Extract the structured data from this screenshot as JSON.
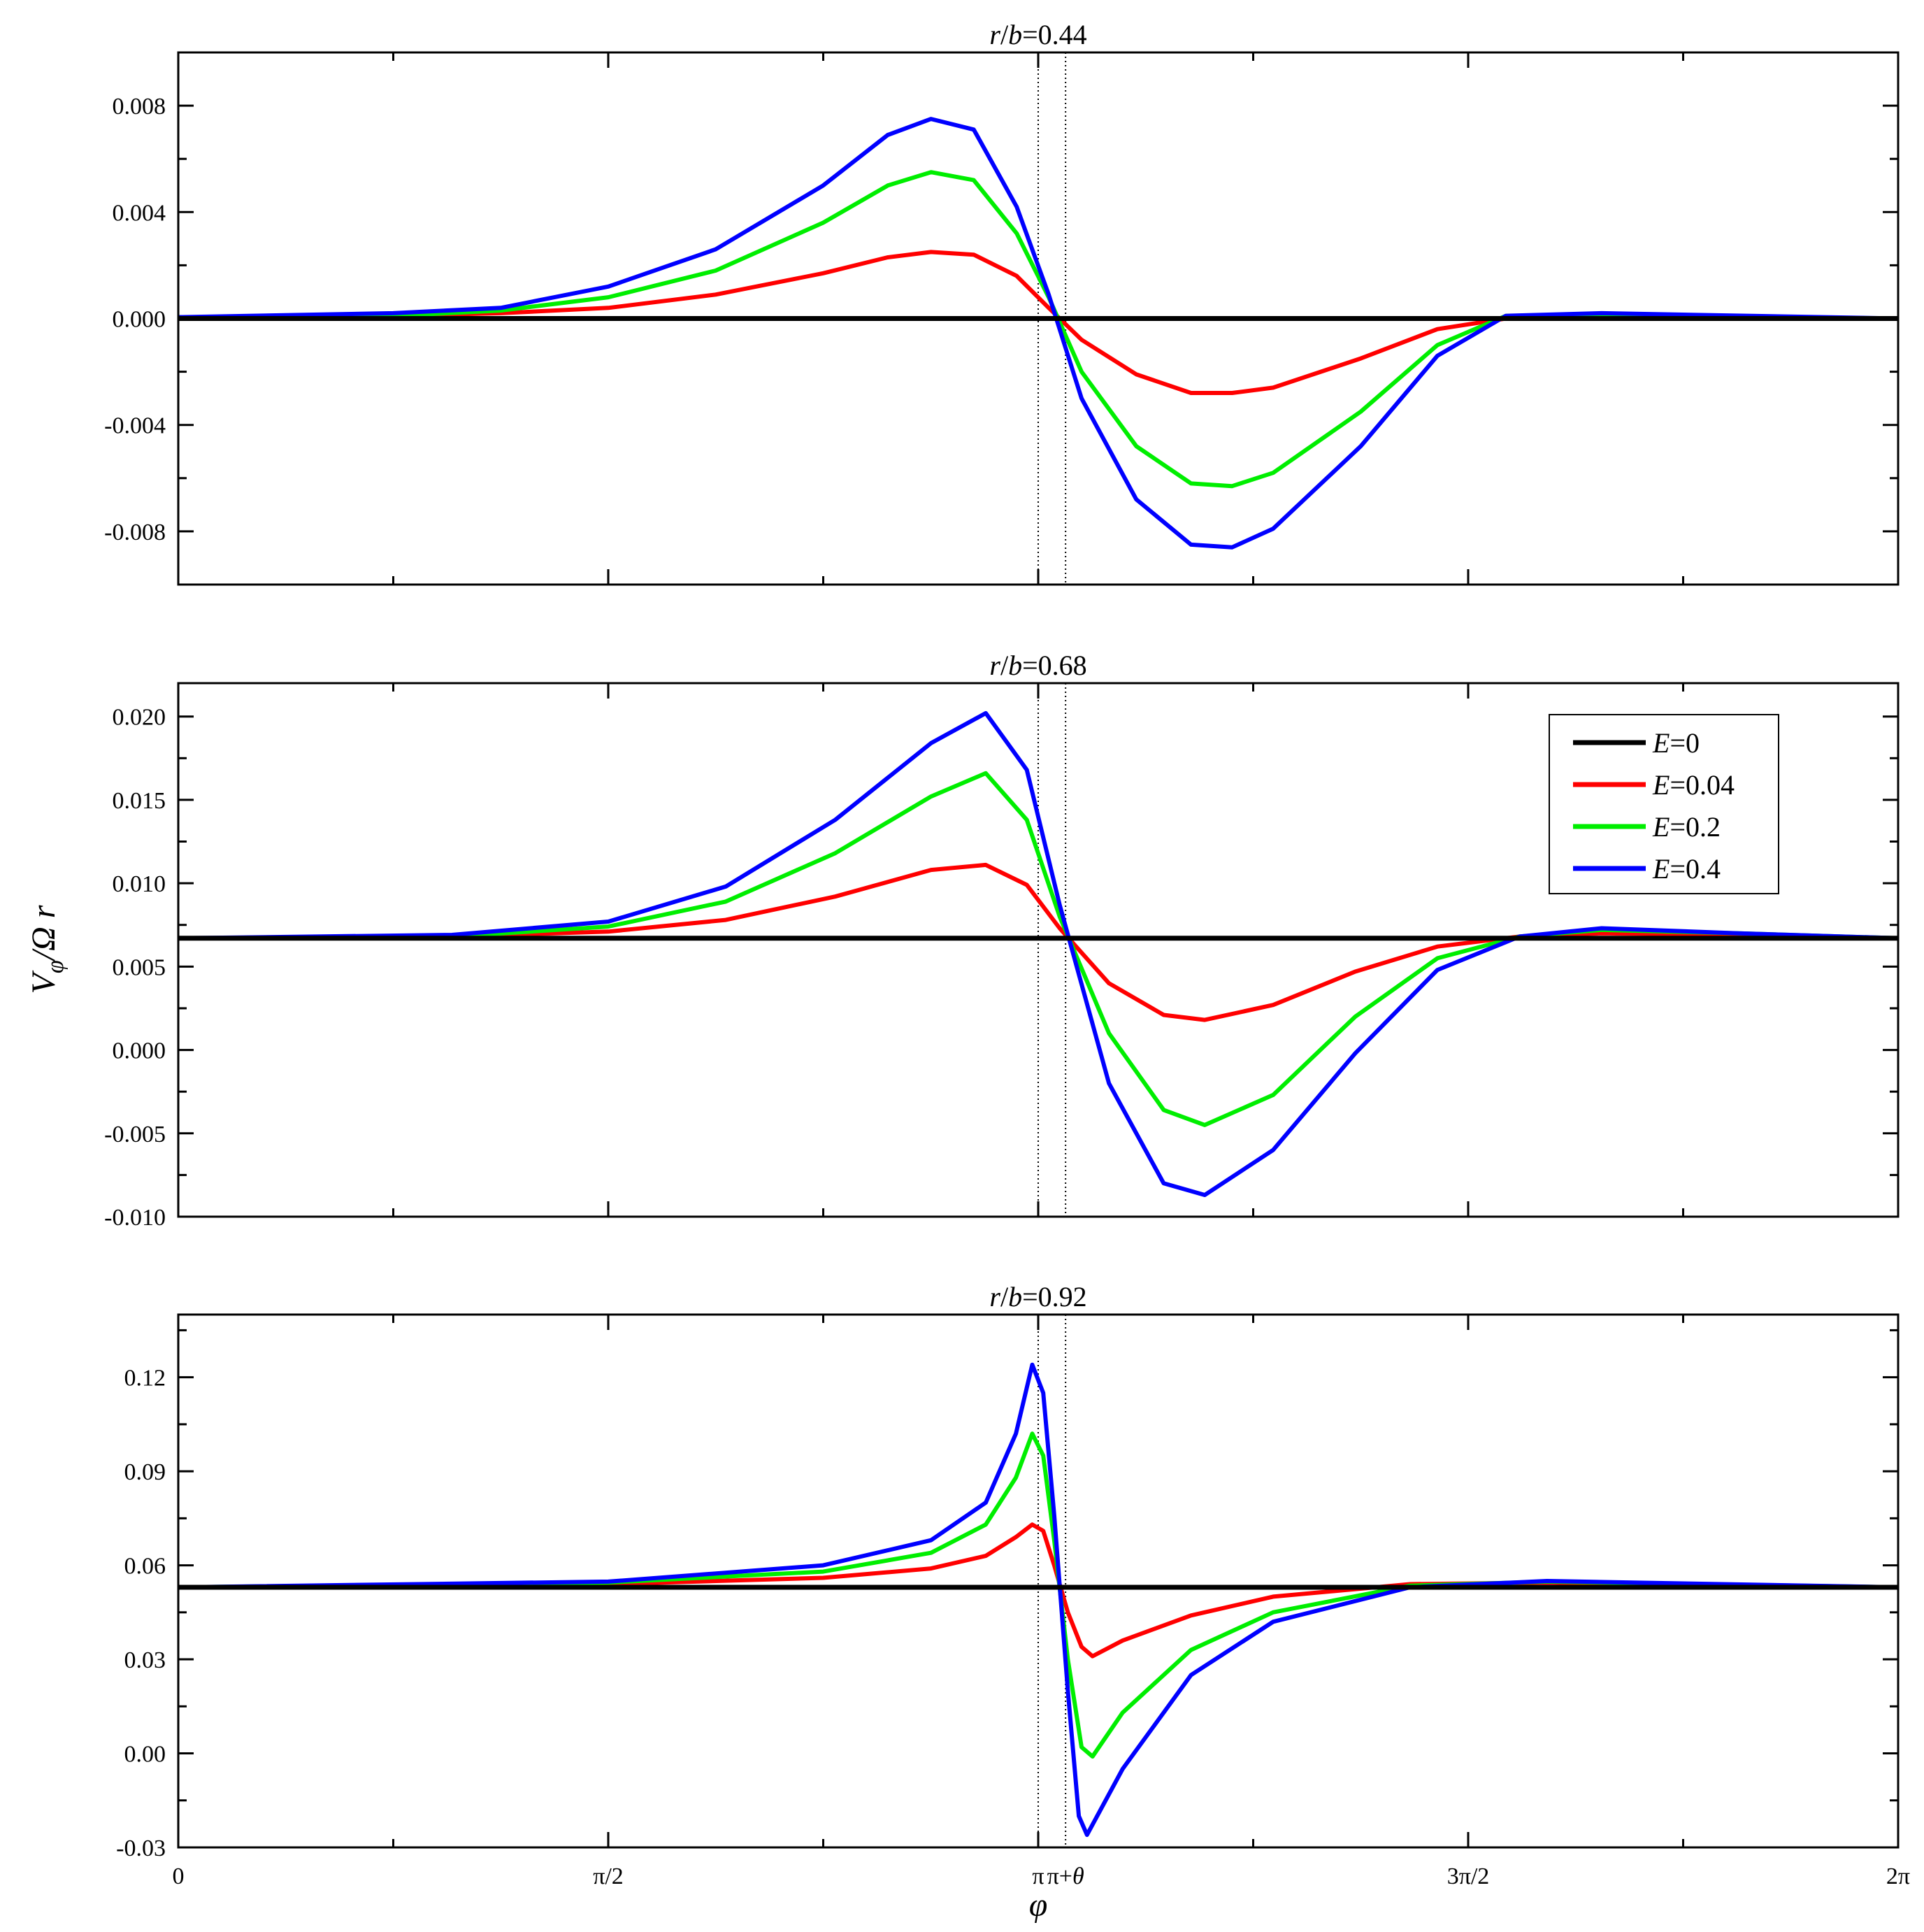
{
  "chart_data": {
    "type": "line",
    "xlabel": "φ",
    "ylabel": "V_φ/Ω r",
    "ylabel_parts": {
      "main": "V",
      "sub": "φ",
      "rest": "/Ω r"
    },
    "xlim": [
      0,
      6.2832
    ],
    "x_ticks": [
      {
        "value": 0,
        "label": "0"
      },
      {
        "value": 1.5708,
        "label": "π/2"
      },
      {
        "value": 3.1416,
        "label": "π"
      },
      {
        "value": 3.2416,
        "label": "π+θ"
      },
      {
        "value": 4.7124,
        "label": "3π/2"
      },
      {
        "value": 6.2832,
        "label": "2π"
      }
    ],
    "vlines": [
      3.1416,
      3.2416
    ],
    "legend": [
      {
        "name": "E=0",
        "var": "E",
        "value": "=0",
        "color": "#000000"
      },
      {
        "name": "E=0.04",
        "var": "E",
        "value": "=0.04",
        "color": "#ff0000"
      },
      {
        "name": "E=0.2",
        "var": "E",
        "value": "=0.2",
        "color": "#00ee00"
      },
      {
        "name": "E=0.4",
        "var": "E",
        "value": "=0.4",
        "color": "#0000ff"
      }
    ],
    "legend_position": "top-right of middle panel",
    "panels": [
      {
        "title": "r/b=0.44",
        "title_parts": {
          "r": "r",
          "b": "b",
          "val": "=0.44"
        },
        "ylim": [
          -0.01,
          0.01
        ],
        "y_ticks": [
          {
            "value": 0.008,
            "label": "0.008"
          },
          {
            "value": 0.004,
            "label": "0.004"
          },
          {
            "value": 0.0,
            "label": "0.000"
          },
          {
            "value": -0.004,
            "label": "-0.004"
          },
          {
            "value": -0.008,
            "label": "-0.008"
          }
        ],
        "series": [
          {
            "name": "E=0",
            "color": "#000000",
            "points": [
              [
                0,
                0
              ],
              [
                6.2832,
                0
              ]
            ]
          },
          {
            "name": "E=0.04",
            "color": "#ff0000",
            "points": [
              [
                0,
                5e-05
              ],
              [
                0.785,
                0.0001
              ],
              [
                1.178,
                0.0002
              ],
              [
                1.571,
                0.0004
              ],
              [
                1.963,
                0.0009
              ],
              [
                2.356,
                0.0017
              ],
              [
                2.592,
                0.0023
              ],
              [
                2.75,
                0.0025
              ],
              [
                2.906,
                0.0024
              ],
              [
                3.063,
                0.0016
              ],
              [
                3.18,
                0.0004
              ],
              [
                3.3,
                -0.0008
              ],
              [
                3.5,
                -0.0021
              ],
              [
                3.7,
                -0.0028
              ],
              [
                3.85,
                -0.0028
              ],
              [
                4.0,
                -0.0026
              ],
              [
                4.32,
                -0.0015
              ],
              [
                4.6,
                -0.0004
              ],
              [
                4.85,
                0
              ],
              [
                5.2,
                5e-05
              ],
              [
                6.2832,
                0
              ]
            ]
          },
          {
            "name": "E=0.2",
            "color": "#00ee00",
            "points": [
              [
                0,
                5e-05
              ],
              [
                0.785,
                0.0001
              ],
              [
                1.178,
                0.0003
              ],
              [
                1.571,
                0.0008
              ],
              [
                1.963,
                0.0018
              ],
              [
                2.356,
                0.0036
              ],
              [
                2.592,
                0.005
              ],
              [
                2.75,
                0.0055
              ],
              [
                2.906,
                0.0052
              ],
              [
                3.063,
                0.0032
              ],
              [
                3.18,
                0.0008
              ],
              [
                3.3,
                -0.002
              ],
              [
                3.5,
                -0.0048
              ],
              [
                3.7,
                -0.0062
              ],
              [
                3.85,
                -0.0063
              ],
              [
                4.0,
                -0.0058
              ],
              [
                4.32,
                -0.0035
              ],
              [
                4.6,
                -0.001
              ],
              [
                4.85,
                0.0001
              ],
              [
                5.2,
                0.00015
              ],
              [
                6.2832,
                0
              ]
            ]
          },
          {
            "name": "E=0.4",
            "color": "#0000ff",
            "points": [
              [
                0,
                5e-05
              ],
              [
                0.785,
                0.0002
              ],
              [
                1.178,
                0.0004
              ],
              [
                1.571,
                0.0012
              ],
              [
                1.963,
                0.0026
              ],
              [
                2.356,
                0.005
              ],
              [
                2.592,
                0.0069
              ],
              [
                2.75,
                0.0075
              ],
              [
                2.906,
                0.0071
              ],
              [
                3.063,
                0.0042
              ],
              [
                3.18,
                0.0009
              ],
              [
                3.3,
                -0.003
              ],
              [
                3.5,
                -0.0068
              ],
              [
                3.7,
                -0.0085
              ],
              [
                3.85,
                -0.0086
              ],
              [
                4.0,
                -0.0079
              ],
              [
                4.32,
                -0.0048
              ],
              [
                4.6,
                -0.0014
              ],
              [
                4.85,
                0.0001
              ],
              [
                5.2,
                0.0002
              ],
              [
                6.2832,
                0
              ]
            ]
          }
        ]
      },
      {
        "title": "r/b=0.68",
        "title_parts": {
          "r": "r",
          "b": "b",
          "val": "=0.68"
        },
        "ylim": [
          -0.01,
          0.022
        ],
        "y_ticks": [
          {
            "value": 0.02,
            "label": "0.020"
          },
          {
            "value": 0.015,
            "label": "0.015"
          },
          {
            "value": 0.01,
            "label": "0.010"
          },
          {
            "value": 0.005,
            "label": "0.005"
          },
          {
            "value": 0.0,
            "label": "0.000"
          },
          {
            "value": -0.005,
            "label": "-0.005"
          },
          {
            "value": -0.01,
            "label": "-0.010"
          }
        ],
        "series": [
          {
            "name": "E=0",
            "color": "#000000",
            "points": [
              [
                0,
                0.0067
              ],
              [
                6.2832,
                0.0067
              ]
            ]
          },
          {
            "name": "E=0.04",
            "color": "#ff0000",
            "points": [
              [
                0,
                0.0067
              ],
              [
                1.0,
                0.0068
              ],
              [
                1.571,
                0.0071
              ],
              [
                2.0,
                0.0078
              ],
              [
                2.4,
                0.0092
              ],
              [
                2.75,
                0.0108
              ],
              [
                2.95,
                0.0111
              ],
              [
                3.1,
                0.0099
              ],
              [
                3.22,
                0.0073
              ],
              [
                3.4,
                0.004
              ],
              [
                3.6,
                0.0021
              ],
              [
                3.75,
                0.0018
              ],
              [
                4.0,
                0.0027
              ],
              [
                4.3,
                0.0047
              ],
              [
                4.6,
                0.0062
              ],
              [
                4.9,
                0.0068
              ],
              [
                5.2,
                0.007
              ],
              [
                5.7,
                0.0069
              ],
              [
                6.2832,
                0.0067
              ]
            ]
          },
          {
            "name": "E=0.2",
            "color": "#00ee00",
            "points": [
              [
                0,
                0.0067
              ],
              [
                1.0,
                0.0068
              ],
              [
                1.571,
                0.0074
              ],
              [
                2.0,
                0.0089
              ],
              [
                2.4,
                0.0118
              ],
              [
                2.75,
                0.0152
              ],
              [
                2.95,
                0.0166
              ],
              [
                3.1,
                0.0138
              ],
              [
                3.22,
                0.008
              ],
              [
                3.4,
                0.001
              ],
              [
                3.6,
                -0.0036
              ],
              [
                3.75,
                -0.0045
              ],
              [
                4.0,
                -0.0027
              ],
              [
                4.3,
                0.002
              ],
              [
                4.6,
                0.0055
              ],
              [
                4.9,
                0.0068
              ],
              [
                5.2,
                0.0072
              ],
              [
                5.7,
                0.007
              ],
              [
                6.2832,
                0.0067
              ]
            ]
          },
          {
            "name": "E=0.4",
            "color": "#0000ff",
            "points": [
              [
                0,
                0.0067
              ],
              [
                1.0,
                0.0069
              ],
              [
                1.571,
                0.0077
              ],
              [
                2.0,
                0.0098
              ],
              [
                2.4,
                0.0138
              ],
              [
                2.75,
                0.0184
              ],
              [
                2.95,
                0.0202
              ],
              [
                3.1,
                0.0168
              ],
              [
                3.22,
                0.0087
              ],
              [
                3.4,
                -0.002
              ],
              [
                3.6,
                -0.008
              ],
              [
                3.75,
                -0.0087
              ],
              [
                4.0,
                -0.006
              ],
              [
                4.3,
                -0.0002
              ],
              [
                4.6,
                0.0048
              ],
              [
                4.9,
                0.0068
              ],
              [
                5.2,
                0.0073
              ],
              [
                5.7,
                0.007
              ],
              [
                6.2832,
                0.0067
              ]
            ]
          }
        ]
      },
      {
        "title": "r/b=0.92",
        "title_parts": {
          "r": "r",
          "b": "b",
          "val": "=0.92"
        },
        "ylim": [
          -0.03,
          0.14
        ],
        "y_ticks": [
          {
            "value": 0.12,
            "label": "0.12"
          },
          {
            "value": 0.09,
            "label": "0.09"
          },
          {
            "value": 0.06,
            "label": "0.06"
          },
          {
            "value": 0.03,
            "label": "0.03"
          },
          {
            "value": 0.0,
            "label": "0.00"
          },
          {
            "value": -0.03,
            "label": "-0.03"
          }
        ],
        "series": [
          {
            "name": "E=0",
            "color": "#000000",
            "points": [
              [
                0,
                0.053
              ],
              [
                6.2832,
                0.053
              ]
            ]
          },
          {
            "name": "E=0.04",
            "color": "#ff0000",
            "points": [
              [
                0,
                0.053
              ],
              [
                1.571,
                0.054
              ],
              [
                2.356,
                0.056
              ],
              [
                2.75,
                0.059
              ],
              [
                2.95,
                0.063
              ],
              [
                3.06,
                0.069
              ],
              [
                3.12,
                0.073
              ],
              [
                3.16,
                0.071
              ],
              [
                3.2,
                0.06
              ],
              [
                3.25,
                0.045
              ],
              [
                3.3,
                0.034
              ],
              [
                3.34,
                0.031
              ],
              [
                3.45,
                0.036
              ],
              [
                3.7,
                0.044
              ],
              [
                4.0,
                0.05
              ],
              [
                4.5,
                0.054
              ],
              [
                5.0,
                0.0545
              ],
              [
                6.2832,
                0.053
              ]
            ]
          },
          {
            "name": "E=0.2",
            "color": "#00ee00",
            "points": [
              [
                0,
                0.053
              ],
              [
                1.571,
                0.0545
              ],
              [
                2.356,
                0.058
              ],
              [
                2.75,
                0.064
              ],
              [
                2.95,
                0.073
              ],
              [
                3.06,
                0.088
              ],
              [
                3.12,
                0.102
              ],
              [
                3.16,
                0.095
              ],
              [
                3.2,
                0.068
              ],
              [
                3.25,
                0.03
              ],
              [
                3.3,
                0.002
              ],
              [
                3.34,
                -0.001
              ],
              [
                3.45,
                0.013
              ],
              [
                3.7,
                0.033
              ],
              [
                4.0,
                0.045
              ],
              [
                4.5,
                0.0535
              ],
              [
                5.0,
                0.0548
              ],
              [
                6.2832,
                0.053
              ]
            ]
          },
          {
            "name": "E=0.4",
            "color": "#0000ff",
            "points": [
              [
                0,
                0.053
              ],
              [
                1.571,
                0.0548
              ],
              [
                2.356,
                0.06
              ],
              [
                2.75,
                0.068
              ],
              [
                2.95,
                0.08
              ],
              [
                3.06,
                0.102
              ],
              [
                3.12,
                0.124
              ],
              [
                3.16,
                0.115
              ],
              [
                3.2,
                0.076
              ],
              [
                3.25,
                0.02
              ],
              [
                3.29,
                -0.02
              ],
              [
                3.32,
                -0.026
              ],
              [
                3.45,
                -0.005
              ],
              [
                3.7,
                0.025
              ],
              [
                4.0,
                0.042
              ],
              [
                4.5,
                0.053
              ],
              [
                5.0,
                0.055
              ],
              [
                6.2832,
                0.053
              ]
            ]
          }
        ]
      }
    ]
  }
}
